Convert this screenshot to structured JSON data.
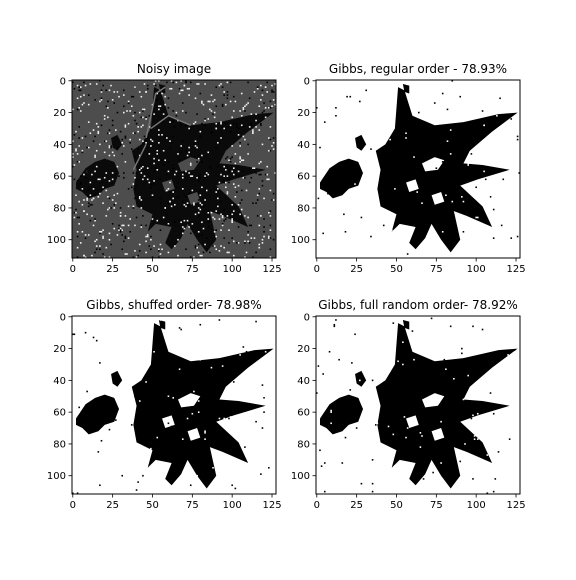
{
  "figure": {
    "background": "#ffffff"
  },
  "chart_data": [
    {
      "type": "heatmap",
      "id": "noisy",
      "title": "Noisy image",
      "colormap": "gray",
      "noise": true,
      "x_ticks": [
        "0",
        "25",
        "50",
        "75",
        "100",
        "125"
      ],
      "y_ticks": [
        "0",
        "20",
        "40",
        "60",
        "80",
        "100"
      ],
      "x_tick_values": [
        0,
        25,
        50,
        75,
        100,
        125
      ],
      "y_tick_values": [
        0,
        20,
        40,
        60,
        80,
        100
      ],
      "xlim": [
        -0.5,
        127.5
      ],
      "ylim": [
        111.5,
        -0.5
      ],
      "colors": {
        "background": "#4d4d4d",
        "shape": "#0a0a0a",
        "noise_light": "#f2f2f2",
        "noise_dark": "#000000"
      }
    },
    {
      "type": "heatmap",
      "id": "regular",
      "title": "Gibbs, regular order - 78.93%",
      "accuracy_percent": 78.93,
      "colormap": "binary",
      "x_ticks": [
        "0",
        "25",
        "50",
        "75",
        "100",
        "125"
      ],
      "y_ticks": [
        "0",
        "20",
        "40",
        "60",
        "80",
        "100"
      ],
      "x_tick_values": [
        0,
        25,
        50,
        75,
        100,
        125
      ],
      "y_tick_values": [
        0,
        20,
        40,
        60,
        80,
        100
      ],
      "xlim": [
        -0.5,
        127.5
      ],
      "ylim": [
        111.5,
        -0.5
      ],
      "colors": {
        "background": "#ffffff",
        "shape": "#000000"
      }
    },
    {
      "type": "heatmap",
      "id": "shuffled",
      "title": "Gibbs, shuffed order- 78.98%",
      "accuracy_percent": 78.98,
      "colormap": "binary",
      "x_ticks": [
        "0",
        "25",
        "50",
        "75",
        "100",
        "125"
      ],
      "y_ticks": [
        "0",
        "20",
        "40",
        "60",
        "80",
        "100"
      ],
      "x_tick_values": [
        0,
        25,
        50,
        75,
        100,
        125
      ],
      "y_tick_values": [
        0,
        20,
        40,
        60,
        80,
        100
      ],
      "xlim": [
        -0.5,
        127.5
      ],
      "ylim": [
        111.5,
        -0.5
      ],
      "colors": {
        "background": "#ffffff",
        "shape": "#000000"
      }
    },
    {
      "type": "heatmap",
      "id": "random",
      "title": "Gibbs, full random order- 78.92%",
      "accuracy_percent": 78.92,
      "colormap": "binary",
      "x_ticks": [
        "0",
        "25",
        "50",
        "75",
        "100",
        "125"
      ],
      "y_ticks": [
        "0",
        "20",
        "40",
        "60",
        "80",
        "100"
      ],
      "x_tick_values": [
        0,
        25,
        50,
        75,
        100,
        125
      ],
      "y_tick_values": [
        0,
        20,
        40,
        60,
        80,
        100
      ],
      "xlim": [
        -0.5,
        127.5
      ],
      "ylim": [
        111.5,
        -0.5
      ],
      "colors": {
        "background": "#ffffff",
        "shape": "#000000"
      }
    }
  ]
}
